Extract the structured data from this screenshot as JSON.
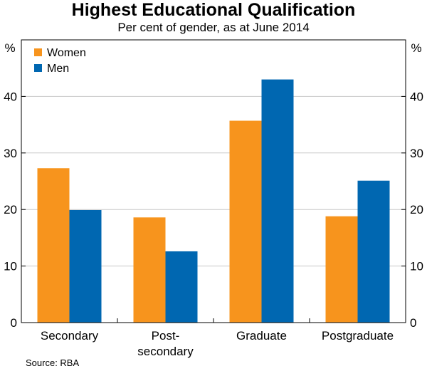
{
  "chart_data": {
    "type": "bar",
    "title": "Highest Educational Qualification",
    "subtitle": "Per cent of gender, as at June 2014",
    "y_unit": "%",
    "yticks": [
      0,
      10,
      20,
      30,
      40
    ],
    "ylim": [
      0,
      50
    ],
    "categories": [
      [
        "Secondary"
      ],
      [
        "Post-",
        "secondary"
      ],
      [
        "Graduate"
      ],
      [
        "Postgraduate"
      ]
    ],
    "series": [
      {
        "name": "Women",
        "color": "#f7941d",
        "values": [
          27.3,
          18.6,
          35.7,
          18.8
        ]
      },
      {
        "name": "Men",
        "color": "#0067b1",
        "values": [
          19.9,
          12.6,
          43.0,
          25.1
        ]
      }
    ],
    "legend_position": "top-left",
    "grid": true,
    "source": "Source: RBA"
  }
}
